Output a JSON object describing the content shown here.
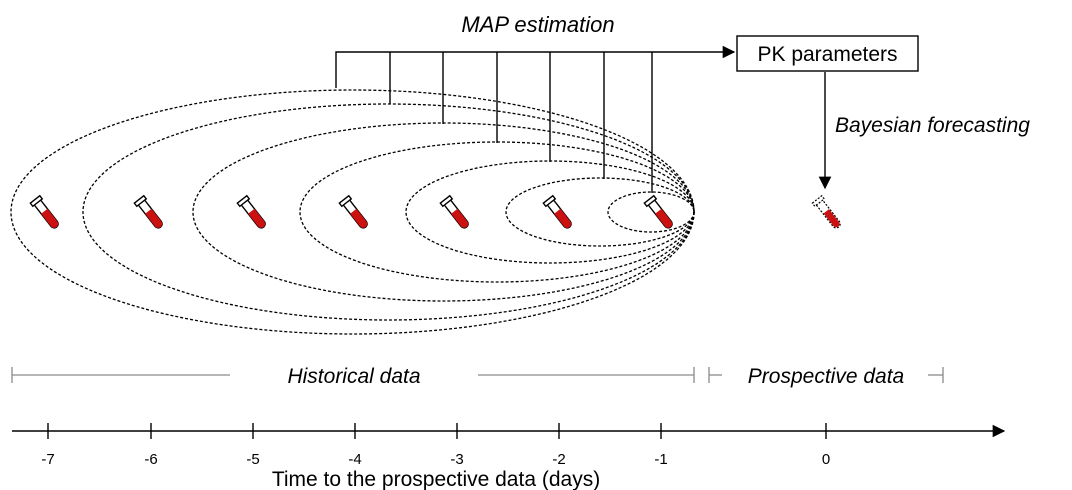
{
  "map_label": "MAP estimation",
  "pk_box_label": "PK parameters",
  "bayes_label": "Bayesian forecasting",
  "historical_label": "Historical data",
  "prospective_label": "Prospective data",
  "axis": {
    "xlabel": "Time to the prospective data (days)",
    "ticks": [
      "-7",
      "-6",
      "-5",
      "-4",
      "-3",
      "-2",
      "-1",
      "0"
    ]
  },
  "colors": {
    "ellipse_fills": [
      "#eef5e6",
      "#e2efd6",
      "#d5e9c5",
      "#c8e3b4",
      "#badda2",
      "#abd690",
      "#9dd17e"
    ],
    "tube_red": "#cc1111",
    "bracket_gray": "#8a8a8a"
  },
  "icons": [
    "blood-tube-icon"
  ]
}
